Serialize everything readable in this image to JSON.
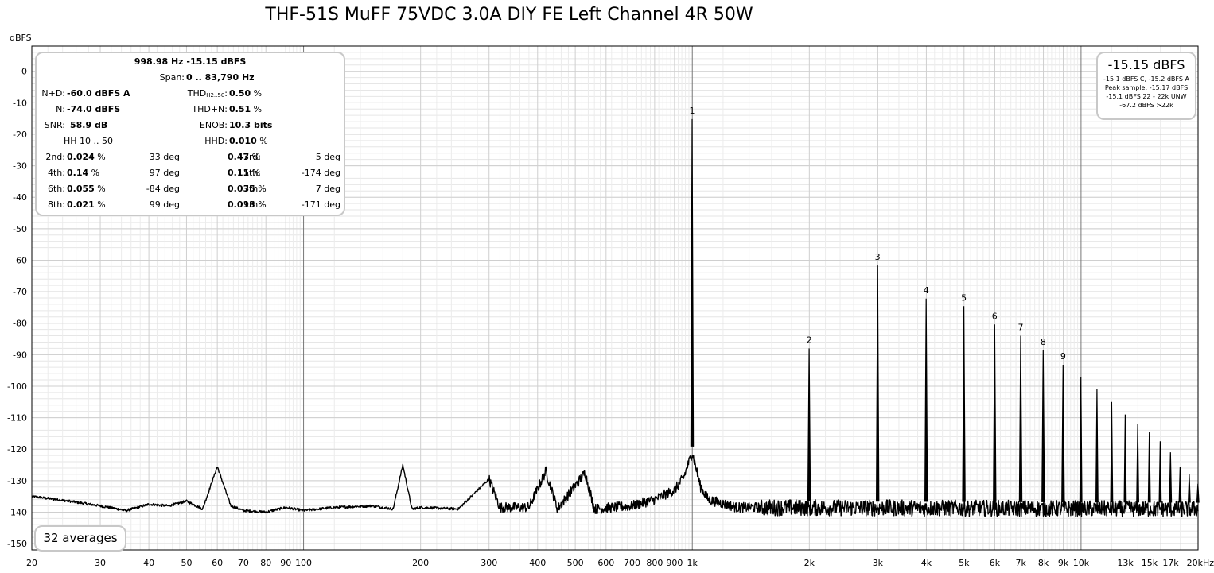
{
  "chart_data": {
    "type": "line",
    "title": "THF-51S MuFF 75VDC 3.0A DIY FE Left Channel 4R 50W",
    "ylabel": "dBFS",
    "xscale": "log",
    "xlim": [
      20,
      20000
    ],
    "ylim": [
      -152,
      8
    ],
    "grid": true,
    "y_ticks": [
      "0",
      "-10",
      "-20",
      "-30",
      "-40",
      "-50",
      "-60",
      "-70",
      "-80",
      "-90",
      "-100",
      "-110",
      "-120",
      "-130",
      "-140",
      "-150"
    ],
    "x_ticks": [
      {
        "v": 20,
        "label": "20"
      },
      {
        "v": 30,
        "label": "30"
      },
      {
        "v": 40,
        "label": "40"
      },
      {
        "v": 50,
        "label": "50"
      },
      {
        "v": 60,
        "label": "60"
      },
      {
        "v": 70,
        "label": "70"
      },
      {
        "v": 80,
        "label": "80"
      },
      {
        "v": 90,
        "label": "90"
      },
      {
        "v": 100,
        "label": "100"
      },
      {
        "v": 200,
        "label": "200"
      },
      {
        "v": 300,
        "label": "300"
      },
      {
        "v": 400,
        "label": "400"
      },
      {
        "v": 500,
        "label": "500"
      },
      {
        "v": 600,
        "label": "600"
      },
      {
        "v": 700,
        "label": "700"
      },
      {
        "v": 800,
        "label": "800"
      },
      {
        "v": 900,
        "label": "900"
      },
      {
        "v": 1000,
        "label": "1k"
      },
      {
        "v": 2000,
        "label": "2k"
      },
      {
        "v": 3000,
        "label": "3k"
      },
      {
        "v": 4000,
        "label": "4k"
      },
      {
        "v": 5000,
        "label": "5k"
      },
      {
        "v": 6000,
        "label": "6k"
      },
      {
        "v": 7000,
        "label": "7k"
      },
      {
        "v": 8000,
        "label": "8k"
      },
      {
        "v": 9000,
        "label": "9k"
      },
      {
        "v": 10000,
        "label": "10k"
      },
      {
        "v": 13000,
        "label": "13k"
      },
      {
        "v": 15000,
        "label": "15k"
      },
      {
        "v": 17000,
        "label": "17k"
      },
      {
        "v": 20000,
        "label": "20kHz"
      }
    ],
    "noise_floor": [
      [
        20,
        -135
      ],
      [
        25,
        -136.5
      ],
      [
        30,
        -138
      ],
      [
        35,
        -139.5
      ],
      [
        40,
        -137.5
      ],
      [
        45,
        -138
      ],
      [
        50,
        -136.5
      ],
      [
        55,
        -139
      ],
      [
        60,
        -125.5
      ],
      [
        65,
        -138
      ],
      [
        70,
        -139.5
      ],
      [
        80,
        -140
      ],
      [
        90,
        -138.5
      ],
      [
        100,
        -139.5
      ],
      [
        120,
        -138.5
      ],
      [
        150,
        -138
      ],
      [
        170,
        -139
      ],
      [
        180,
        -125
      ],
      [
        190,
        -139
      ],
      [
        200,
        -138.5
      ],
      [
        250,
        -139
      ],
      [
        300,
        -129.5
      ],
      [
        320,
        -138.5
      ],
      [
        380,
        -138.5
      ],
      [
        420,
        -127
      ],
      [
        450,
        -139
      ],
      [
        530,
        -127.5
      ],
      [
        560,
        -139
      ],
      [
        700,
        -138
      ],
      [
        800,
        -136
      ],
      [
        900,
        -133
      ],
      [
        950,
        -129
      ],
      [
        1000,
        -121
      ],
      [
        1050,
        -132
      ],
      [
        1100,
        -136
      ],
      [
        1300,
        -138.5
      ],
      [
        20000,
        -139
      ]
    ],
    "harmonics": [
      {
        "label": "1",
        "x": 999,
        "y": -15.2
      },
      {
        "label": "2",
        "x": 1998,
        "y": -88
      },
      {
        "label": "3",
        "x": 2997,
        "y": -61.7
      },
      {
        "label": "4",
        "x": 3996,
        "y": -72.2
      },
      {
        "label": "5",
        "x": 4995,
        "y": -74.6
      },
      {
        "label": "6",
        "x": 5994,
        "y": -80.4
      },
      {
        "label": "7",
        "x": 6993,
        "y": -84
      },
      {
        "label": "8",
        "x": 7992,
        "y": -88.6
      },
      {
        "label": "9",
        "x": 8991,
        "y": -93.2
      }
    ],
    "higher_harmonics": [
      {
        "x": 9990,
        "y": -97
      },
      {
        "x": 10989,
        "y": -101
      },
      {
        "x": 11988,
        "y": -105
      },
      {
        "x": 12987,
        "y": -109
      },
      {
        "x": 13986,
        "y": -112
      },
      {
        "x": 14985,
        "y": -114.5
      },
      {
        "x": 15984,
        "y": -117.5
      },
      {
        "x": 16983,
        "y": -121
      },
      {
        "x": 17982,
        "y": -125.5
      },
      {
        "x": 18981,
        "y": -128
      },
      {
        "x": 19980,
        "y": -131
      }
    ]
  },
  "stats": {
    "header": "998.98 Hz  -15.15 dBFS",
    "span_label": "Span:",
    "span_value": "0 .. 83,790 Hz",
    "nd_label": "N+D:",
    "nd_value": "-60.0 dBFS A",
    "thd_label_main": "THD",
    "thd_label_sub": "H2..50",
    "thd_label_colon": ":",
    "thd_value": "0.50",
    "thd_unit": "%",
    "n_label": "N:",
    "n_value": "-74.0 dBFS",
    "thdn_label": "THD+N:",
    "thdn_value": "0.51",
    "thdn_unit": "%",
    "snr_label": "SNR:",
    "snr_value": "58.9 dB",
    "enob_label": "ENOB:",
    "enob_value": "10.3 bits",
    "hh_label": "HH 10 .. 50",
    "hhd_label": "HHD:",
    "hhd_value": "0.010",
    "hhd_unit": "%",
    "harm_rows": [
      {
        "l1": "2nd:",
        "v1": "0.024",
        "p1": "33 deg",
        "l2": "3rd:",
        "v2": "0.47",
        "p2": "5 deg"
      },
      {
        "l1": "4th:",
        "v1": "0.14",
        "p1": "97 deg",
        "l2": "5th:",
        "v2": "0.11",
        "p2": "-174 deg"
      },
      {
        "l1": "6th:",
        "v1": "0.055",
        "p1": "-84 deg",
        "l2": "7th:",
        "v2": "0.035",
        "p2": "7 deg"
      },
      {
        "l1": "8th:",
        "v1": "0.021",
        "p1": "99 deg",
        "l2": "9th:",
        "v2": "0.013",
        "p2": "-171 deg"
      }
    ],
    "pct": "%"
  },
  "level": {
    "main": "-15.15 dBFS",
    "line1": "-15.1 dBFS C, -15.2 dBFS A",
    "line2": "Peak sample: -15.17 dBFS",
    "line3": "-15.1 dBFS 22 - 22k UNW",
    "line4": "-67.2 dBFS >22k"
  },
  "averages": "32 averages"
}
